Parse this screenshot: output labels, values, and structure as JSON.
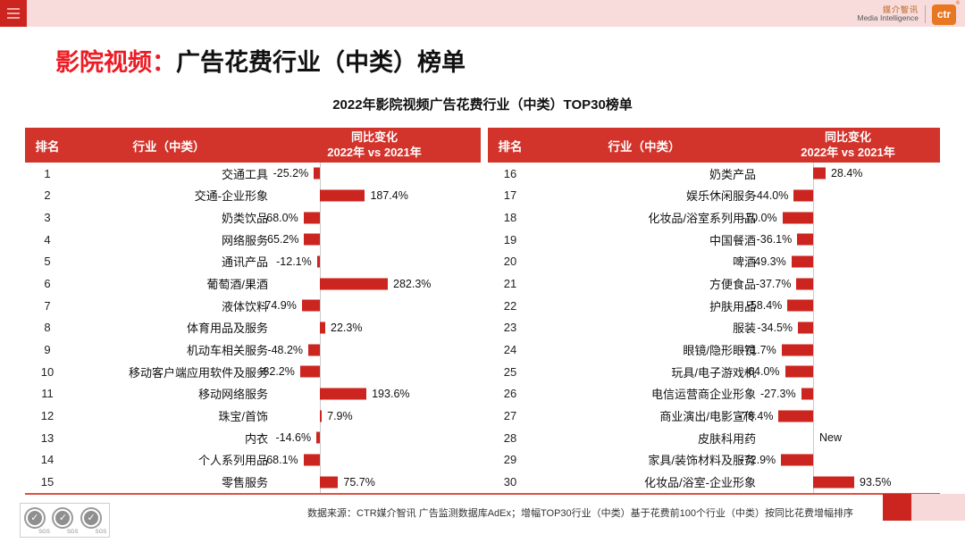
{
  "topbar": {
    "brand_cn": "媒介智讯",
    "brand_en": "Media Intelligence",
    "brand_logo": "ctr",
    "brand_reg": "®",
    "menu_icon": "hamburger-icon"
  },
  "title": {
    "prefix": "影院视频：",
    "main": "广告花费行业（中类）榜单"
  },
  "subtitle": "2022年影院视频广告花费行业（中类）TOP30榜单",
  "table_headers": {
    "rank": "排名",
    "industry": "行业（中类）",
    "change_line1": "同比变化",
    "change_line2": "2022年 vs 2021年"
  },
  "chart_data": {
    "type": "bar",
    "title": "2022年影院视频广告花费行业（中类）TOP30榜单",
    "ylabel": "同比变化 2022年 vs 2021年 (%)",
    "orientation": "horizontal",
    "legend": "none",
    "left_panel": {
      "max_abs_percent": 282.3,
      "rows": [
        {
          "rank": 1,
          "industry": "交通工具",
          "label": "-25.2%",
          "value": -25.2
        },
        {
          "rank": 2,
          "industry": "交通-企业形象",
          "label": "187.4%",
          "value": 187.4
        },
        {
          "rank": 3,
          "industry": "奶类饮品",
          "label": "-68.0%",
          "value": -68.0
        },
        {
          "rank": 4,
          "industry": "网络服务",
          "label": "-65.2%",
          "value": -65.2
        },
        {
          "rank": 5,
          "industry": "通讯产品",
          "label": "-12.1%",
          "value": -12.1
        },
        {
          "rank": 6,
          "industry": "葡萄酒/果酒",
          "label": "282.3%",
          "value": 282.3
        },
        {
          "rank": 7,
          "industry": "液体饮料",
          "label": "-74.9%",
          "value": -74.9
        },
        {
          "rank": 8,
          "industry": "体育用品及服务",
          "label": "22.3%",
          "value": 22.3
        },
        {
          "rank": 9,
          "industry": "机动车相关服务",
          "label": "-48.2%",
          "value": -48.2
        },
        {
          "rank": 10,
          "industry": "移动客户端应用软件及服务",
          "label": "-82.2%",
          "value": -82.2
        },
        {
          "rank": 11,
          "industry": "移动网络服务",
          "label": "193.6%",
          "value": 193.6
        },
        {
          "rank": 12,
          "industry": "珠宝/首饰",
          "label": "7.9%",
          "value": 7.9
        },
        {
          "rank": 13,
          "industry": "内衣",
          "label": "-14.6%",
          "value": -14.6
        },
        {
          "rank": 14,
          "industry": "个人系列用品",
          "label": "-68.1%",
          "value": -68.1
        },
        {
          "rank": 15,
          "industry": "零售服务",
          "label": "75.7%",
          "value": 75.7
        }
      ]
    },
    "right_panel": {
      "max_abs_percent": 93.5,
      "rows": [
        {
          "rank": 16,
          "industry": "奶类产品",
          "label": "28.4%",
          "value": 28.4
        },
        {
          "rank": 17,
          "industry": "娱乐休闲服务",
          "label": "-44.0%",
          "value": -44.0
        },
        {
          "rank": 18,
          "industry": "化妆品/浴室系列用品",
          "label": "-70.0%",
          "value": -70.0
        },
        {
          "rank": 19,
          "industry": "中国餐酒",
          "label": "-36.1%",
          "value": -36.1
        },
        {
          "rank": 20,
          "industry": "啤酒",
          "label": "-49.3%",
          "value": -49.3
        },
        {
          "rank": 21,
          "industry": "方便食品",
          "label": "-37.7%",
          "value": -37.7
        },
        {
          "rank": 22,
          "industry": "护肤用品",
          "label": "-58.4%",
          "value": -58.4
        },
        {
          "rank": 23,
          "industry": "服装",
          "label": "-34.5%",
          "value": -34.5
        },
        {
          "rank": 24,
          "industry": "眼镜/隐形眼镜",
          "label": "-71.7%",
          "value": -71.7
        },
        {
          "rank": 25,
          "industry": "玩具/电子游戏机",
          "label": "-64.0%",
          "value": -64.0
        },
        {
          "rank": 26,
          "industry": "电信运营商企业形象",
          "label": "-27.3%",
          "value": -27.3
        },
        {
          "rank": 27,
          "industry": "商业演出/电影宣传",
          "label": "-78.4%",
          "value": -78.4
        },
        {
          "rank": 28,
          "industry": "皮肤科用药",
          "label": "New",
          "value": null
        },
        {
          "rank": 29,
          "industry": "家具/装饰材料及服务",
          "label": "-72.9%",
          "value": -72.9
        },
        {
          "rank": 30,
          "industry": "化妆品/浴室-企业形象",
          "label": "93.5%",
          "value": 93.5
        }
      ]
    }
  },
  "footer": {
    "source": "数据来源：CTR媒介智讯 广告监测数据库AdEx；增幅TOP30行业（中类）基于花费前100个行业（中类）按同比花费增幅排序",
    "sgs_label": "SGS",
    "check_glyph": "✓"
  },
  "colors": {
    "header_red": "#d2332b",
    "bar_red": "#cc241f",
    "title_red": "#ed1c24",
    "topbar_pink": "#f8dcdc",
    "corner_pink": "#f6d9d8",
    "ctr_orange": "#e87722",
    "axis_gray": "#c9c9c9"
  }
}
